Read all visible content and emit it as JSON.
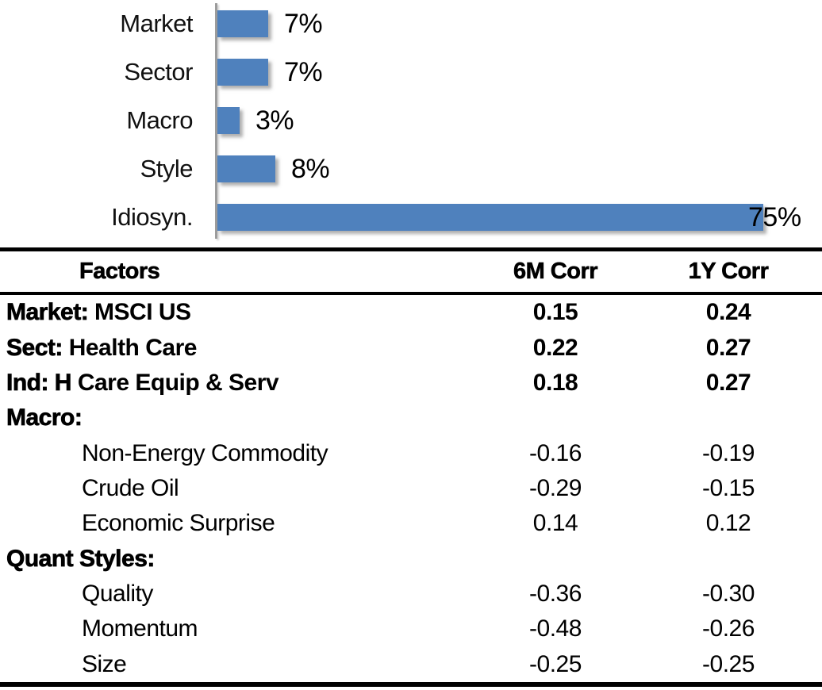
{
  "chart_data": {
    "type": "bar",
    "orientation": "horizontal",
    "title": "",
    "xlabel": "",
    "ylabel": "",
    "categories": [
      "Market",
      "Sector",
      "Macro",
      "Style",
      "Idiosyn."
    ],
    "values": [
      7,
      7,
      3,
      8,
      75
    ],
    "value_labels": [
      "7%",
      "7%",
      "3%",
      "8%",
      "75%"
    ],
    "xlim": [
      0,
      80
    ],
    "grid": "off",
    "legend": "none",
    "bar_color": "#4f81bd",
    "axis_color": "#9c9c9c"
  },
  "table": {
    "headers": [
      "Factors",
      "6M Corr",
      "1Y Corr"
    ],
    "rows": [
      {
        "bold": "Market:",
        "rest": " MSCI US",
        "indent": false,
        "c6m": "0.15",
        "c1y": "0.24"
      },
      {
        "bold": "Sect:",
        "rest": " Health Care",
        "indent": false,
        "c6m": "0.22",
        "c1y": "0.27"
      },
      {
        "bold": "Ind: H",
        "rest": " Care Equip & Serv",
        "indent": false,
        "c6m": "0.18",
        "c1y": "0.27"
      },
      {
        "bold": "Macro:",
        "rest": "",
        "indent": false,
        "c6m": "",
        "c1y": ""
      },
      {
        "bold": "",
        "rest": "Non-Energy Commodity",
        "indent": true,
        "c6m": "-0.16",
        "c1y": "-0.19"
      },
      {
        "bold": "",
        "rest": "Crude Oil",
        "indent": true,
        "c6m": "-0.29",
        "c1y": "-0.15"
      },
      {
        "bold": "",
        "rest": "Economic Surprise",
        "indent": true,
        "c6m": "0.14",
        "c1y": "0.12"
      },
      {
        "bold": "Quant Styles:",
        "rest": "",
        "indent": false,
        "c6m": "",
        "c1y": ""
      },
      {
        "bold": "",
        "rest": "Quality",
        "indent": true,
        "c6m": "-0.36",
        "c1y": "-0.30"
      },
      {
        "bold": "",
        "rest": "Momentum",
        "indent": true,
        "c6m": "-0.48",
        "c1y": "-0.26"
      },
      {
        "bold": "",
        "rest": "Size",
        "indent": true,
        "c6m": "-0.25",
        "c1y": "-0.25"
      }
    ]
  }
}
